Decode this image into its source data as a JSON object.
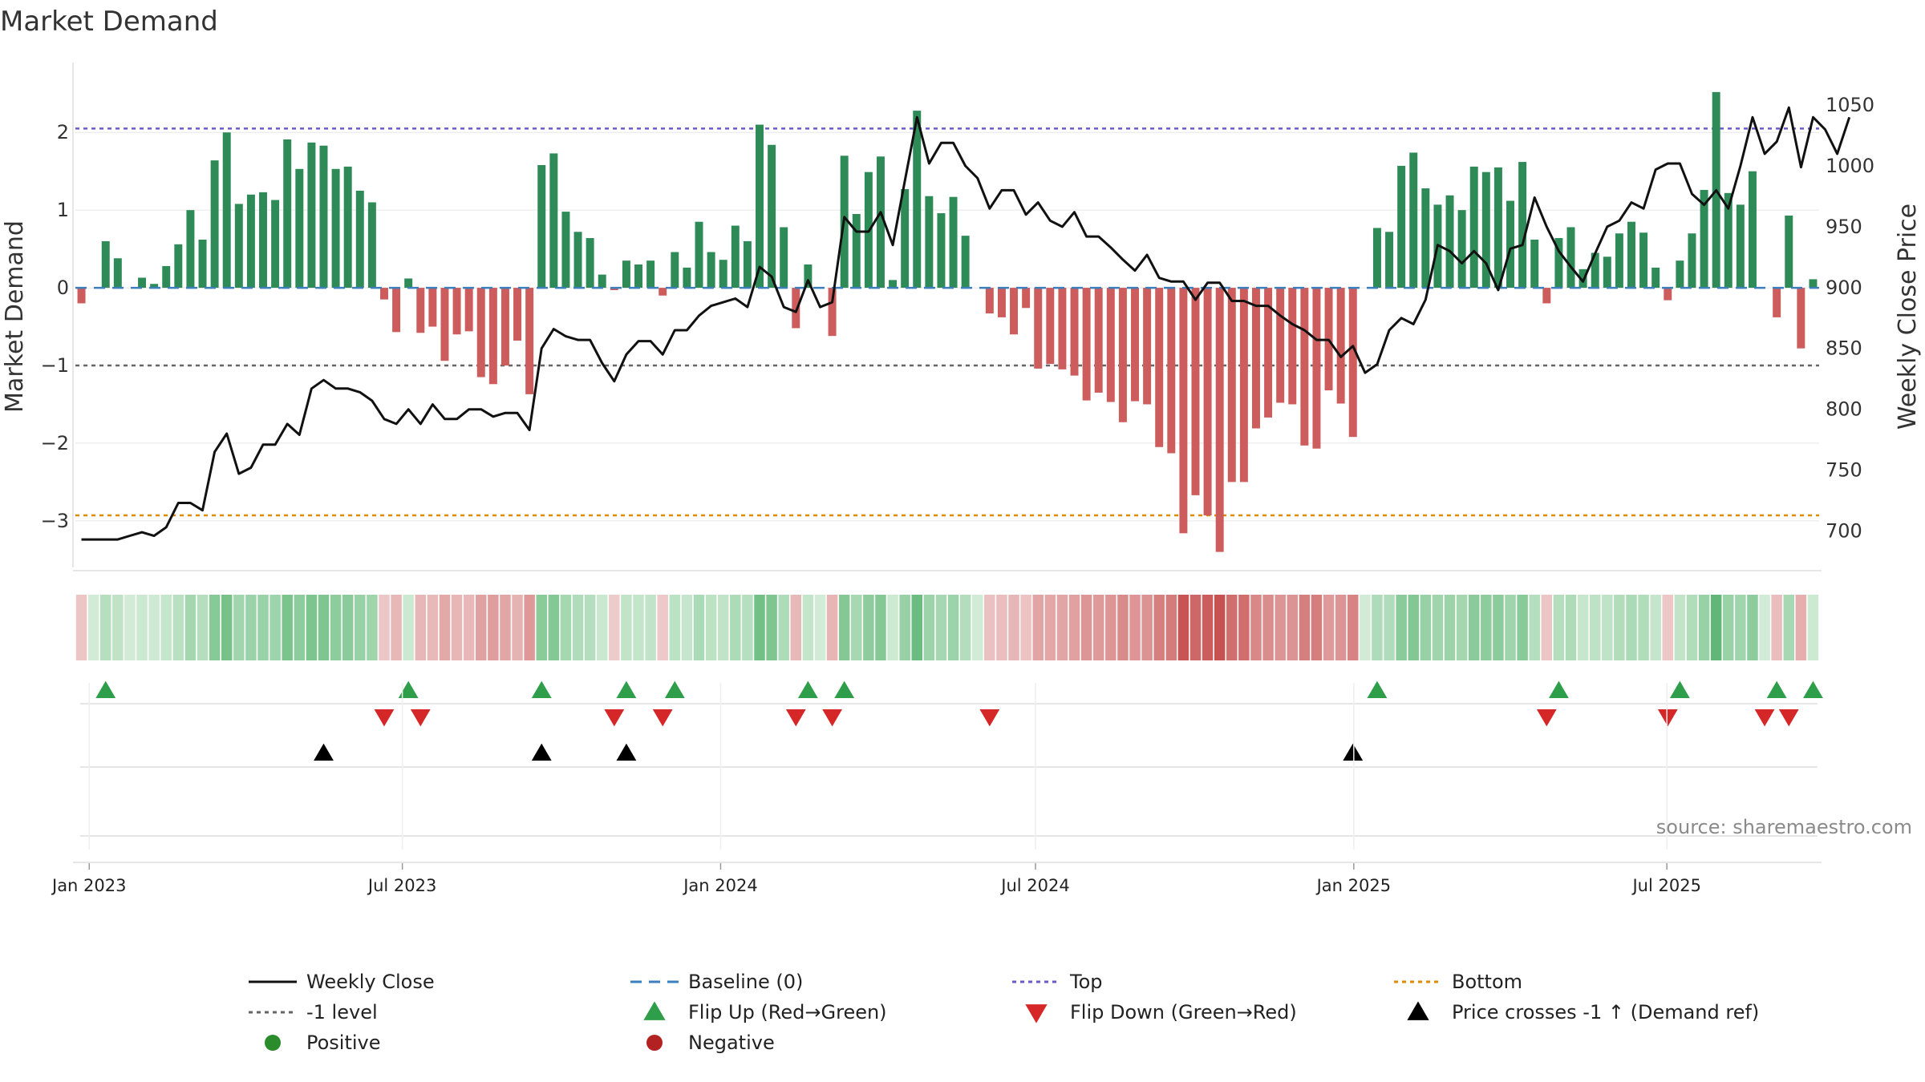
{
  "chart_data": {
    "type": "bar",
    "title": "Market Demand",
    "ylabel": "Market Demand",
    "y2label": "Weekly Close Price",
    "ylim": [
      -3.6,
      2.9
    ],
    "y2lim": [
      670,
      1085
    ],
    "yticks": [
      "2",
      "1",
      "0",
      "−1",
      "−2",
      "−3"
    ],
    "ytick_values": [
      2,
      1,
      0,
      -1,
      -2,
      -3
    ],
    "y2ticks": [
      "1050",
      "1000",
      "950",
      "900",
      "850",
      "800",
      "750",
      "700"
    ],
    "y2tick_values": [
      1050,
      1000,
      950,
      900,
      850,
      800,
      750,
      700
    ],
    "x_start": "2023-01-01",
    "week_days": 7,
    "xticks": [
      {
        "label": "Jan 2023",
        "day": 8
      },
      {
        "label": "Jul 2023",
        "day": 189
      },
      {
        "label": "Jan 2024",
        "day": 373
      },
      {
        "label": "Jul 2024",
        "day": 555
      },
      {
        "label": "Jan 2025",
        "day": 739
      },
      {
        "label": "Jul 2025",
        "day": 920
      }
    ],
    "top_level": 2.05,
    "bottom_level": -2.93,
    "minus_one_level": -1,
    "demand": [
      -0.2,
      0.0,
      0.6,
      0.38,
      0.0,
      0.13,
      0.05,
      0.28,
      0.56,
      1.0,
      0.62,
      1.64,
      2.0,
      1.08,
      1.2,
      1.23,
      1.13,
      1.91,
      1.53,
      1.87,
      1.83,
      1.53,
      1.56,
      1.25,
      1.1,
      -0.15,
      -0.57,
      0.12,
      -0.58,
      -0.5,
      -0.94,
      -0.6,
      -0.56,
      -1.15,
      -1.24,
      -1.0,
      -0.68,
      -1.37,
      1.58,
      1.73,
      0.98,
      0.72,
      0.64,
      0.17,
      -0.03,
      0.35,
      0.3,
      0.35,
      -0.1,
      0.46,
      0.26,
      0.85,
      0.46,
      0.36,
      0.8,
      0.6,
      2.1,
      1.84,
      0.78,
      -0.52,
      0.3,
      0.0,
      -0.62,
      1.7,
      0.95,
      1.49,
      1.69,
      0.1,
      1.27,
      2.28,
      1.18,
      0.96,
      1.17,
      0.67,
      0.0,
      -0.33,
      -0.38,
      -0.6,
      -0.26,
      -1.04,
      -0.98,
      -1.05,
      -1.13,
      -1.45,
      -1.35,
      -1.47,
      -1.73,
      -1.46,
      -1.5,
      -2.05,
      -2.13,
      -3.16,
      -2.67,
      -2.93,
      -3.4,
      -2.5,
      -2.5,
      -1.81,
      -1.67,
      -1.48,
      -1.5,
      -2.03,
      -2.07,
      -1.32,
      -1.49,
      -1.92,
      0.0,
      0.77,
      0.72,
      1.57,
      1.74,
      1.28,
      1.07,
      1.19,
      1.0,
      1.56,
      1.49,
      1.55,
      1.12,
      1.62,
      0.62,
      -0.2,
      0.64,
      0.78,
      0.24,
      0.45,
      0.4,
      0.7,
      0.85,
      0.71,
      0.26,
      -0.16,
      0.35,
      0.7,
      1.26,
      2.52,
      1.22,
      1.07,
      1.5,
      0.0,
      -0.38,
      0.93,
      -0.78,
      0.11
    ],
    "close": [
      693,
      693,
      693,
      693,
      696,
      699,
      696,
      703,
      723,
      723,
      717,
      765,
      780,
      747,
      752,
      771,
      771,
      788,
      779,
      817,
      824,
      817,
      817,
      814,
      807,
      792,
      788,
      800,
      788,
      804,
      792,
      792,
      800,
      800,
      794,
      797,
      797,
      783,
      850,
      866,
      860,
      857,
      857,
      838,
      823,
      845,
      856,
      856,
      845,
      865,
      865,
      877,
      885,
      888,
      891,
      884,
      917,
      909,
      884,
      880,
      906,
      884,
      888,
      958,
      946,
      946,
      962,
      935,
      988,
      1040,
      1002,
      1019,
      1019,
      1000,
      990,
      965,
      980,
      980,
      960,
      970,
      955,
      950,
      962,
      942,
      942,
      933,
      923,
      914,
      927,
      908,
      905,
      905,
      890,
      904,
      904,
      889,
      889,
      885,
      885,
      877,
      870,
      865,
      857,
      857,
      843,
      852,
      830,
      837,
      865,
      875,
      870,
      890,
      935,
      930,
      920,
      930,
      920,
      898,
      932,
      935,
      974,
      950,
      930,
      917,
      905,
      928,
      950,
      955,
      970,
      965,
      997,
      1002,
      1002,
      977,
      968,
      980,
      965,
      1000,
      1040,
      1010,
      1020,
      1048,
      999,
      1040,
      1030,
      1010,
      1040
    ],
    "flip_up_weeks": [
      2,
      27,
      38,
      45,
      49,
      60,
      63,
      107,
      122,
      132,
      140,
      143
    ],
    "flip_down_weeks": [
      25,
      28,
      44,
      48,
      59,
      62,
      75,
      121,
      131,
      139,
      141
    ],
    "price_cross_weeks": [
      20,
      38,
      45,
      105
    ],
    "source": "source: sharemaestro.com",
    "legend": [
      {
        "key": "weekly-close",
        "label": "Weekly Close",
        "symbol": "solid-line",
        "color": "#111111"
      },
      {
        "key": "baseline",
        "label": "Baseline (0)",
        "symbol": "dashed-line",
        "color": "#3b7fbf"
      },
      {
        "key": "top",
        "label": "Top",
        "symbol": "dotted-line",
        "color": "#6a5acd"
      },
      {
        "key": "bottom",
        "label": "Bottom",
        "symbol": "dotted-line",
        "color": "#e08a00"
      },
      {
        "key": "minus-one",
        "label": "-1 level",
        "symbol": "dotted-line",
        "color": "#666666"
      },
      {
        "key": "flip-up",
        "label": "Flip Up (Red→Green)",
        "symbol": "triangle-up",
        "color": "#2e9e4a"
      },
      {
        "key": "flip-down",
        "label": "Flip Down (Green→Red)",
        "symbol": "triangle-down",
        "color": "#d62728"
      },
      {
        "key": "price-cross",
        "label": "Price crosses -1 ↑ (Demand ref)",
        "symbol": "triangle-up",
        "color": "#000000"
      },
      {
        "key": "positive",
        "label": "Positive",
        "symbol": "circle",
        "color": "#2a8c2a"
      },
      {
        "key": "negative",
        "label": "Negative",
        "symbol": "circle",
        "color": "#b22222"
      }
    ],
    "colors": {
      "positive_bar": "#2e8b57",
      "negative_bar": "#cd5c5c",
      "close_line": "#111111",
      "baseline": "#3b7fbf",
      "top": "#6a5acd",
      "bottom": "#e08a00",
      "minus_one": "#666666",
      "flip_up": "#2e9e4a",
      "flip_down": "#d62728",
      "price_cross": "#000000",
      "grid": "#e6e6e6"
    }
  }
}
